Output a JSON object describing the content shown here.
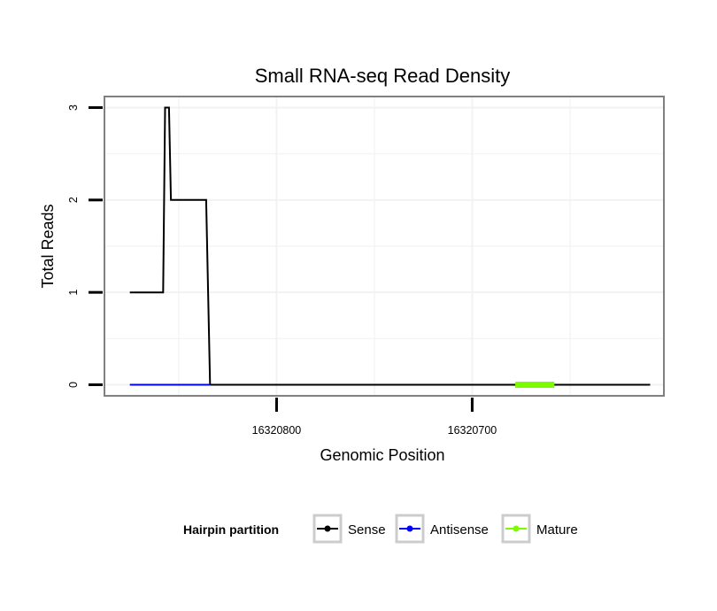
{
  "chart_data": {
    "type": "line",
    "title": "Small RNA-seq Read Density",
    "xlabel": "Genomic Position",
    "ylabel": "Total Reads",
    "x_reversed": true,
    "xlim": [
      16320888,
      16320602
    ],
    "ylim": [
      -0.12,
      3.12
    ],
    "x_ticks": [
      16320800,
      16320700
    ],
    "x_tick_labels": [
      "16320800",
      "16320700"
    ],
    "y_ticks": [
      0,
      1,
      2,
      3
    ],
    "y_tick_labels": [
      "0",
      "1",
      "2",
      "3"
    ],
    "grid": true,
    "colors": {
      "Sense": "#000000",
      "Antisense": "#0000ff",
      "Mature": "#7cfc00",
      "grid": "#f2f2f2",
      "panel_border": "#808080"
    },
    "series": [
      {
        "name": "Sense",
        "x": [
          16320875,
          16320858,
          16320857,
          16320855,
          16320854,
          16320836,
          16320834,
          16320609
        ],
        "y": [
          1,
          1,
          3,
          3,
          2,
          2,
          0,
          0
        ]
      },
      {
        "name": "Antisense",
        "x": [
          16320875,
          16320834
        ],
        "y": [
          0,
          0
        ]
      },
      {
        "name": "Mature",
        "x": [
          16320678,
          16320658
        ],
        "y": [
          0,
          0
        ]
      }
    ],
    "legend": {
      "title": "Hairpin partition",
      "position": "bottom",
      "entries": [
        "Sense",
        "Antisense",
        "Mature"
      ]
    }
  }
}
